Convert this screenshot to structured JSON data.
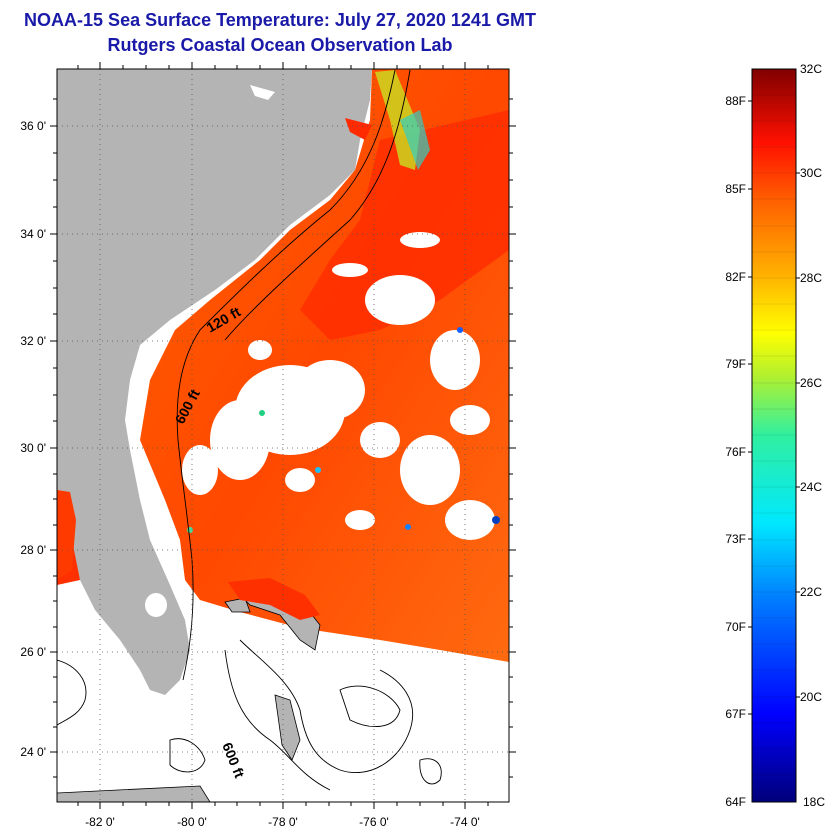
{
  "header": {
    "title": "NOAA-15 Sea Surface Temperature:  July 27, 2020 1241 GMT",
    "subtitle": "Rutgers Coastal Ocean Observation Lab"
  },
  "map": {
    "lon_ticks": [
      "-82 0'",
      "-80 0'",
      "-78 0'",
      "-76 0'",
      "-74 0'"
    ],
    "lat_ticks": [
      "36 0'",
      "34 0'",
      "32 0'",
      "30 0'",
      "28 0'",
      "26 0'",
      "24 0'"
    ],
    "contour_labels": [
      "120 ft",
      "600 ft",
      "600 ft"
    ],
    "colors": {
      "land": "#b4b4b4",
      "ocean_warm": "#ff5a00",
      "ocean_hot": "#ff2800",
      "no_data": "#ffffff"
    }
  },
  "colorbar": {
    "celsius_labels": [
      "32C",
      "30C",
      "28C",
      "26C",
      "24C",
      "22C",
      "20C",
      "18C"
    ],
    "fahrenheit_labels": [
      "88F",
      "85F",
      "82F",
      "79F",
      "76F",
      "73F",
      "70F",
      "67F",
      "64F"
    ],
    "range_c": [
      18,
      32
    ],
    "range_f": [
      64,
      89.6
    ]
  }
}
